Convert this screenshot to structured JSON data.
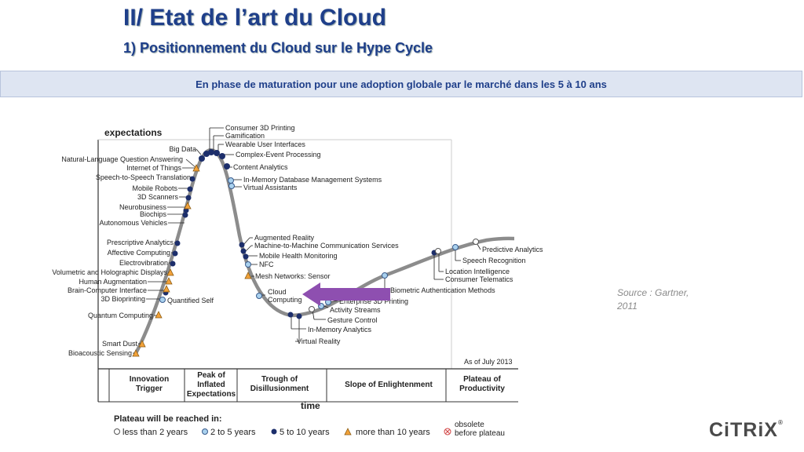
{
  "slide": {
    "title": "II/ Etat de l’art du Cloud",
    "subtitle": "1) Positionnement du Cloud sur le Hype Cycle",
    "banner": "En phase de maturation pour une adoption globale par le marché dans les 5 à 10 ans",
    "source_line1": "Source : Gartner,",
    "source_line2": "2011",
    "logo": "CiTRiX"
  },
  "hype_cycle": {
    "y_axis_label": "expectations",
    "x_axis_label": "time",
    "date_note": "As of July 2013",
    "phases": [
      [
        "Innovation",
        "Trigger"
      ],
      [
        "Peak of",
        "Inflated",
        "Expectations"
      ],
      [
        "Trough of",
        "Disillusionment"
      ],
      [
        "Slope of Enlightenment"
      ],
      [
        "Plateau of",
        "Productivity"
      ]
    ],
    "legend_title": "Plateau will be reached in:",
    "legend": [
      {
        "label": "less than 2 years",
        "symbol": "white-circle"
      },
      {
        "label": "2 to 5 years",
        "symbol": "light-blue-circle"
      },
      {
        "label": "5 to 10 years",
        "symbol": "dark-blue-circle"
      },
      {
        "label": "more than 10 years",
        "symbol": "orange-triangle"
      },
      {
        "label": "obsolete before plateau",
        "symbol": "red-x-circle"
      }
    ],
    "colors": {
      "white": "#ffffff",
      "light_blue": "#a9d1ee",
      "dark_blue": "#1c2e6b",
      "orange": "#f2a23a",
      "curve": "#8c8c8c",
      "arrow": "#8e4fb0"
    },
    "arrow_target": "Cloud Computing",
    "technologies": {
      "trigger": [
        "Natural-Language Question Answering",
        "Internet of Things",
        "Speech-to-Speech Translation",
        "Mobile Robots",
        "3D Scanners",
        "Neurobusiness",
        "Biochips",
        "Autonomous Vehicles",
        "Prescriptive Analytics",
        "Affective Computing",
        "Electrovibration",
        "Volumetric and Holographic Displays",
        "Human Augmentation",
        "Brain-Computer Interface",
        "3D Bioprinting",
        "Quantified Self",
        "Quantum Computing",
        "Smart Dust",
        "Bioacoustic Sensing"
      ],
      "peak": [
        "Big Data",
        "Consumer 3D Printing",
        "Gamification",
        "Wearable User Interfaces",
        "Complex-Event Processing",
        "Content Analytics",
        "In-Memory Database Management Systems",
        "Virtual Assistants"
      ],
      "trough": [
        "Augmented Reality",
        "Machine-to-Machine Communication Services",
        "Mobile Health Monitoring",
        "NFC",
        "Mesh Networks: Sensor",
        "Cloud Computing",
        "Enterprise 3D Printing",
        "Activity Streams",
        "Gesture Control",
        "In-Memory Analytics",
        "Virtual Reality"
      ],
      "slope": [
        "Biometric Authentication Methods",
        "Predictive Analytics",
        "Speech Recognition",
        "Location Intelligence",
        "Consumer Telematics"
      ]
    }
  }
}
